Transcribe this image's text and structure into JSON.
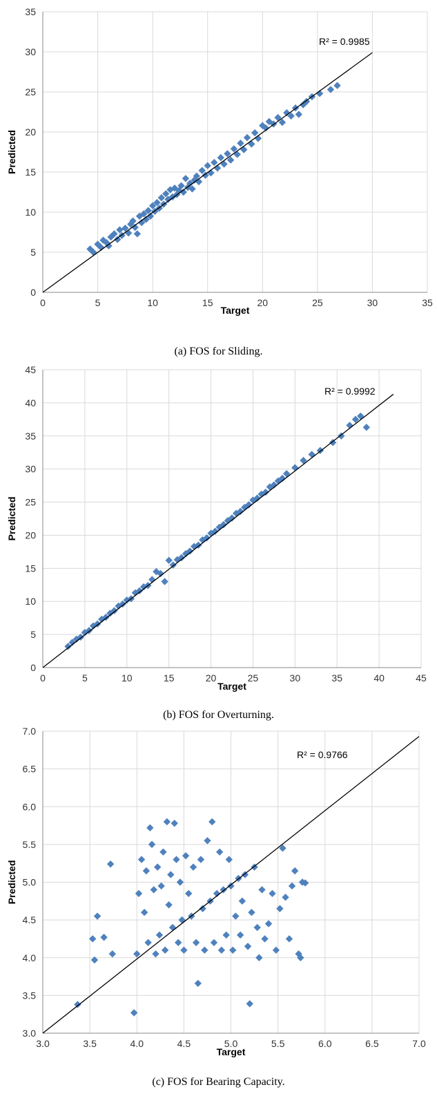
{
  "chart_data": [
    {
      "type": "scatter",
      "caption": "(a) FOS for Sliding.",
      "xlabel": "Target",
      "ylabel": "Predicted",
      "xlim": [
        0,
        35
      ],
      "ylim": [
        0,
        35
      ],
      "xticks": [
        "0",
        "5",
        "10",
        "15",
        "20",
        "25",
        "30",
        "35"
      ],
      "yticks": [
        "0",
        "5",
        "10",
        "15",
        "20",
        "25",
        "30",
        "35"
      ],
      "grid": true,
      "trendline": {
        "label": "R² = 0.9985",
        "from": [
          0,
          0
        ],
        "to": [
          30,
          29.9
        ]
      },
      "marker_color": "#4F81BD",
      "series": [
        {
          "points": [
            [
              4.3,
              5.4
            ],
            [
              4.6,
              5.0
            ],
            [
              5.0,
              6.0
            ],
            [
              5.3,
              5.6
            ],
            [
              5.5,
              6.5
            ],
            [
              5.8,
              6.2
            ],
            [
              6.0,
              5.8
            ],
            [
              6.2,
              6.9
            ],
            [
              6.5,
              7.3
            ],
            [
              6.8,
              6.6
            ],
            [
              7.0,
              7.8
            ],
            [
              7.2,
              7.1
            ],
            [
              7.5,
              8.0
            ],
            [
              7.8,
              7.4
            ],
            [
              8.0,
              8.5
            ],
            [
              8.2,
              8.9
            ],
            [
              8.4,
              8.1
            ],
            [
              8.6,
              7.3
            ],
            [
              8.8,
              9.5
            ],
            [
              9.0,
              8.7
            ],
            [
              9.2,
              9.8
            ],
            [
              9.4,
              9.1
            ],
            [
              9.6,
              10.2
            ],
            [
              9.8,
              9.5
            ],
            [
              10.0,
              10.8
            ],
            [
              10.2,
              10.1
            ],
            [
              10.4,
              11.2
            ],
            [
              10.6,
              10.5
            ],
            [
              10.8,
              11.8
            ],
            [
              11.0,
              11.0
            ],
            [
              11.2,
              12.3
            ],
            [
              11.4,
              11.6
            ],
            [
              11.6,
              12.8
            ],
            [
              11.8,
              11.9
            ],
            [
              12.0,
              13.0
            ],
            [
              12.2,
              12.2
            ],
            [
              12.4,
              12.7
            ],
            [
              12.6,
              13.3
            ],
            [
              12.8,
              12.5
            ],
            [
              13.0,
              14.2
            ],
            [
              13.2,
              13.1
            ],
            [
              13.4,
              13.6
            ],
            [
              13.6,
              12.9
            ],
            [
              13.8,
              14.0
            ],
            [
              14.0,
              14.5
            ],
            [
              14.2,
              13.8
            ],
            [
              14.5,
              15.2
            ],
            [
              14.8,
              14.6
            ],
            [
              15.0,
              15.8
            ],
            [
              15.3,
              14.9
            ],
            [
              15.6,
              16.2
            ],
            [
              15.9,
              15.5
            ],
            [
              16.2,
              16.8
            ],
            [
              16.5,
              16.0
            ],
            [
              16.8,
              17.3
            ],
            [
              17.1,
              16.5
            ],
            [
              17.4,
              17.9
            ],
            [
              17.7,
              17.2
            ],
            [
              18.0,
              18.6
            ],
            [
              18.3,
              17.8
            ],
            [
              18.6,
              19.3
            ],
            [
              19.0,
              18.5
            ],
            [
              19.3,
              19.9
            ],
            [
              19.6,
              19.2
            ],
            [
              20.0,
              20.8
            ],
            [
              20.3,
              20.5
            ],
            [
              20.6,
              21.3
            ],
            [
              21.0,
              21.0
            ],
            [
              21.4,
              21.8
            ],
            [
              21.8,
              21.2
            ],
            [
              22.2,
              22.4
            ],
            [
              22.6,
              22.0
            ],
            [
              23.0,
              23.0
            ],
            [
              23.3,
              22.2
            ],
            [
              23.7,
              23.4
            ],
            [
              24.0,
              23.8
            ],
            [
              24.5,
              24.4
            ],
            [
              25.2,
              24.8
            ],
            [
              26.2,
              25.3
            ],
            [
              26.8,
              25.8
            ]
          ]
        }
      ]
    },
    {
      "type": "scatter",
      "caption": "(b) FOS for Overturning.",
      "xlabel": "Target",
      "ylabel": "Predicted",
      "xlim": [
        0,
        45
      ],
      "ylim": [
        0,
        45
      ],
      "xticks": [
        "0",
        "5",
        "10",
        "15",
        "20",
        "25",
        "30",
        "35",
        "40",
        "45"
      ],
      "yticks": [
        "0",
        "5",
        "10",
        "15",
        "20",
        "25",
        "30",
        "35",
        "40",
        "45"
      ],
      "grid": true,
      "trendline": {
        "label": "R² = 0.9992",
        "from": [
          0,
          0
        ],
        "to": [
          41.7,
          41.3
        ]
      },
      "marker_color": "#4F81BD",
      "series": [
        {
          "points": [
            [
              3.0,
              3.2
            ],
            [
              3.5,
              3.8
            ],
            [
              4.0,
              4.3
            ],
            [
              4.5,
              4.6
            ],
            [
              5.0,
              5.3
            ],
            [
              5.5,
              5.6
            ],
            [
              6.0,
              6.3
            ],
            [
              6.5,
              6.6
            ],
            [
              7.0,
              7.3
            ],
            [
              7.5,
              7.6
            ],
            [
              8.0,
              8.2
            ],
            [
              8.5,
              8.6
            ],
            [
              9.0,
              9.3
            ],
            [
              9.5,
              9.6
            ],
            [
              10.0,
              10.2
            ],
            [
              10.5,
              10.4
            ],
            [
              11.0,
              11.3
            ],
            [
              11.5,
              11.6
            ],
            [
              12.0,
              12.2
            ],
            [
              12.5,
              12.4
            ],
            [
              13.0,
              13.3
            ],
            [
              13.5,
              14.5
            ],
            [
              14.0,
              14.2
            ],
            [
              14.5,
              13.0
            ],
            [
              15.0,
              16.2
            ],
            [
              15.5,
              15.5
            ],
            [
              16.0,
              16.3
            ],
            [
              16.5,
              16.6
            ],
            [
              17.0,
              17.2
            ],
            [
              17.5,
              17.6
            ],
            [
              18.0,
              18.3
            ],
            [
              18.5,
              18.5
            ],
            [
              19.0,
              19.3
            ],
            [
              19.5,
              19.6
            ],
            [
              20.0,
              20.3
            ],
            [
              20.5,
              20.6
            ],
            [
              21.0,
              21.2
            ],
            [
              21.5,
              21.6
            ],
            [
              22.0,
              22.2
            ],
            [
              22.5,
              22.6
            ],
            [
              23.0,
              23.3
            ],
            [
              23.5,
              23.6
            ],
            [
              24.0,
              24.2
            ],
            [
              24.5,
              24.6
            ],
            [
              25.0,
              25.3
            ],
            [
              25.5,
              25.6
            ],
            [
              26.0,
              26.2
            ],
            [
              26.5,
              26.5
            ],
            [
              27.0,
              27.3
            ],
            [
              27.5,
              27.6
            ],
            [
              28.0,
              28.2
            ],
            [
              28.5,
              28.6
            ],
            [
              29.0,
              29.3
            ],
            [
              30.0,
              30.2
            ],
            [
              31.0,
              31.3
            ],
            [
              32.0,
              32.2
            ],
            [
              33.0,
              32.8
            ],
            [
              34.5,
              34.0
            ],
            [
              35.5,
              35.0
            ],
            [
              36.5,
              36.6
            ],
            [
              37.2,
              37.5
            ],
            [
              37.8,
              38.0
            ],
            [
              38.5,
              36.3
            ]
          ]
        }
      ]
    },
    {
      "type": "scatter",
      "caption": "(c) FOS for Bearing Capacity.",
      "xlabel": "Target",
      "ylabel": "Predicted",
      "xlim": [
        3.0,
        7.0
      ],
      "ylim": [
        3.0,
        7.0
      ],
      "xticks": [
        "3.0",
        "3.5",
        "4.0",
        "4.5",
        "5.0",
        "5.5",
        "6.0",
        "6.5",
        "7.0"
      ],
      "yticks": [
        "3.0",
        "3.5",
        "4.0",
        "4.5",
        "5.0",
        "5.5",
        "6.0",
        "6.5",
        "7.0"
      ],
      "grid": true,
      "trendline": {
        "label": "R² = 0.9766",
        "from": [
          3.0,
          3.0
        ],
        "to": [
          7.0,
          6.93
        ]
      },
      "marker_color": "#4F81BD",
      "series": [
        {
          "points": [
            [
              3.37,
              3.38
            ],
            [
              3.53,
              4.25
            ],
            [
              3.55,
              3.97
            ],
            [
              3.58,
              4.55
            ],
            [
              3.65,
              4.27
            ],
            [
              3.72,
              5.24
            ],
            [
              3.74,
              4.05
            ],
            [
              3.97,
              3.27
            ],
            [
              4.0,
              4.05
            ],
            [
              4.02,
              4.85
            ],
            [
              4.05,
              5.3
            ],
            [
              4.08,
              4.6
            ],
            [
              4.1,
              5.15
            ],
            [
              4.12,
              4.2
            ],
            [
              4.14,
              5.72
            ],
            [
              4.16,
              5.5
            ],
            [
              4.18,
              4.9
            ],
            [
              4.2,
              4.05
            ],
            [
              4.22,
              5.2
            ],
            [
              4.24,
              4.3
            ],
            [
              4.26,
              4.95
            ],
            [
              4.28,
              5.4
            ],
            [
              4.3,
              4.1
            ],
            [
              4.32,
              5.8
            ],
            [
              4.34,
              4.7
            ],
            [
              4.36,
              5.1
            ],
            [
              4.38,
              4.4
            ],
            [
              4.4,
              5.78
            ],
            [
              4.42,
              5.3
            ],
            [
              4.44,
              4.2
            ],
            [
              4.46,
              5.0
            ],
            [
              4.48,
              4.5
            ],
            [
              4.5,
              4.1
            ],
            [
              4.52,
              5.35
            ],
            [
              4.55,
              4.85
            ],
            [
              4.58,
              4.55
            ],
            [
              4.6,
              5.2
            ],
            [
              4.63,
              4.2
            ],
            [
              4.65,
              3.66
            ],
            [
              4.68,
              5.3
            ],
            [
              4.7,
              4.65
            ],
            [
              4.72,
              4.1
            ],
            [
              4.75,
              5.55
            ],
            [
              4.78,
              4.75
            ],
            [
              4.8,
              5.8
            ],
            [
              4.82,
              4.2
            ],
            [
              4.85,
              4.85
            ],
            [
              4.88,
              5.4
            ],
            [
              4.9,
              4.1
            ],
            [
              4.92,
              4.9
            ],
            [
              4.95,
              4.3
            ],
            [
              4.98,
              5.3
            ],
            [
              5.0,
              4.95
            ],
            [
              5.02,
              4.1
            ],
            [
              5.05,
              4.55
            ],
            [
              5.08,
              5.05
            ],
            [
              5.1,
              4.3
            ],
            [
              5.12,
              4.75
            ],
            [
              5.15,
              5.1
            ],
            [
              5.18,
              4.15
            ],
            [
              5.2,
              3.39
            ],
            [
              5.22,
              4.6
            ],
            [
              5.25,
              5.2
            ],
            [
              5.28,
              4.4
            ],
            [
              5.3,
              4.0
            ],
            [
              5.33,
              4.9
            ],
            [
              5.36,
              4.25
            ],
            [
              5.4,
              4.45
            ],
            [
              5.44,
              4.85
            ],
            [
              5.48,
              4.1
            ],
            [
              5.52,
              4.65
            ],
            [
              5.55,
              5.45
            ],
            [
              5.58,
              4.8
            ],
            [
              5.62,
              4.25
            ],
            [
              5.65,
              4.95
            ],
            [
              5.68,
              5.15
            ],
            [
              5.72,
              4.05
            ],
            [
              5.74,
              4.0
            ],
            [
              5.76,
              5.0
            ],
            [
              5.79,
              4.99
            ]
          ]
        }
      ]
    }
  ]
}
